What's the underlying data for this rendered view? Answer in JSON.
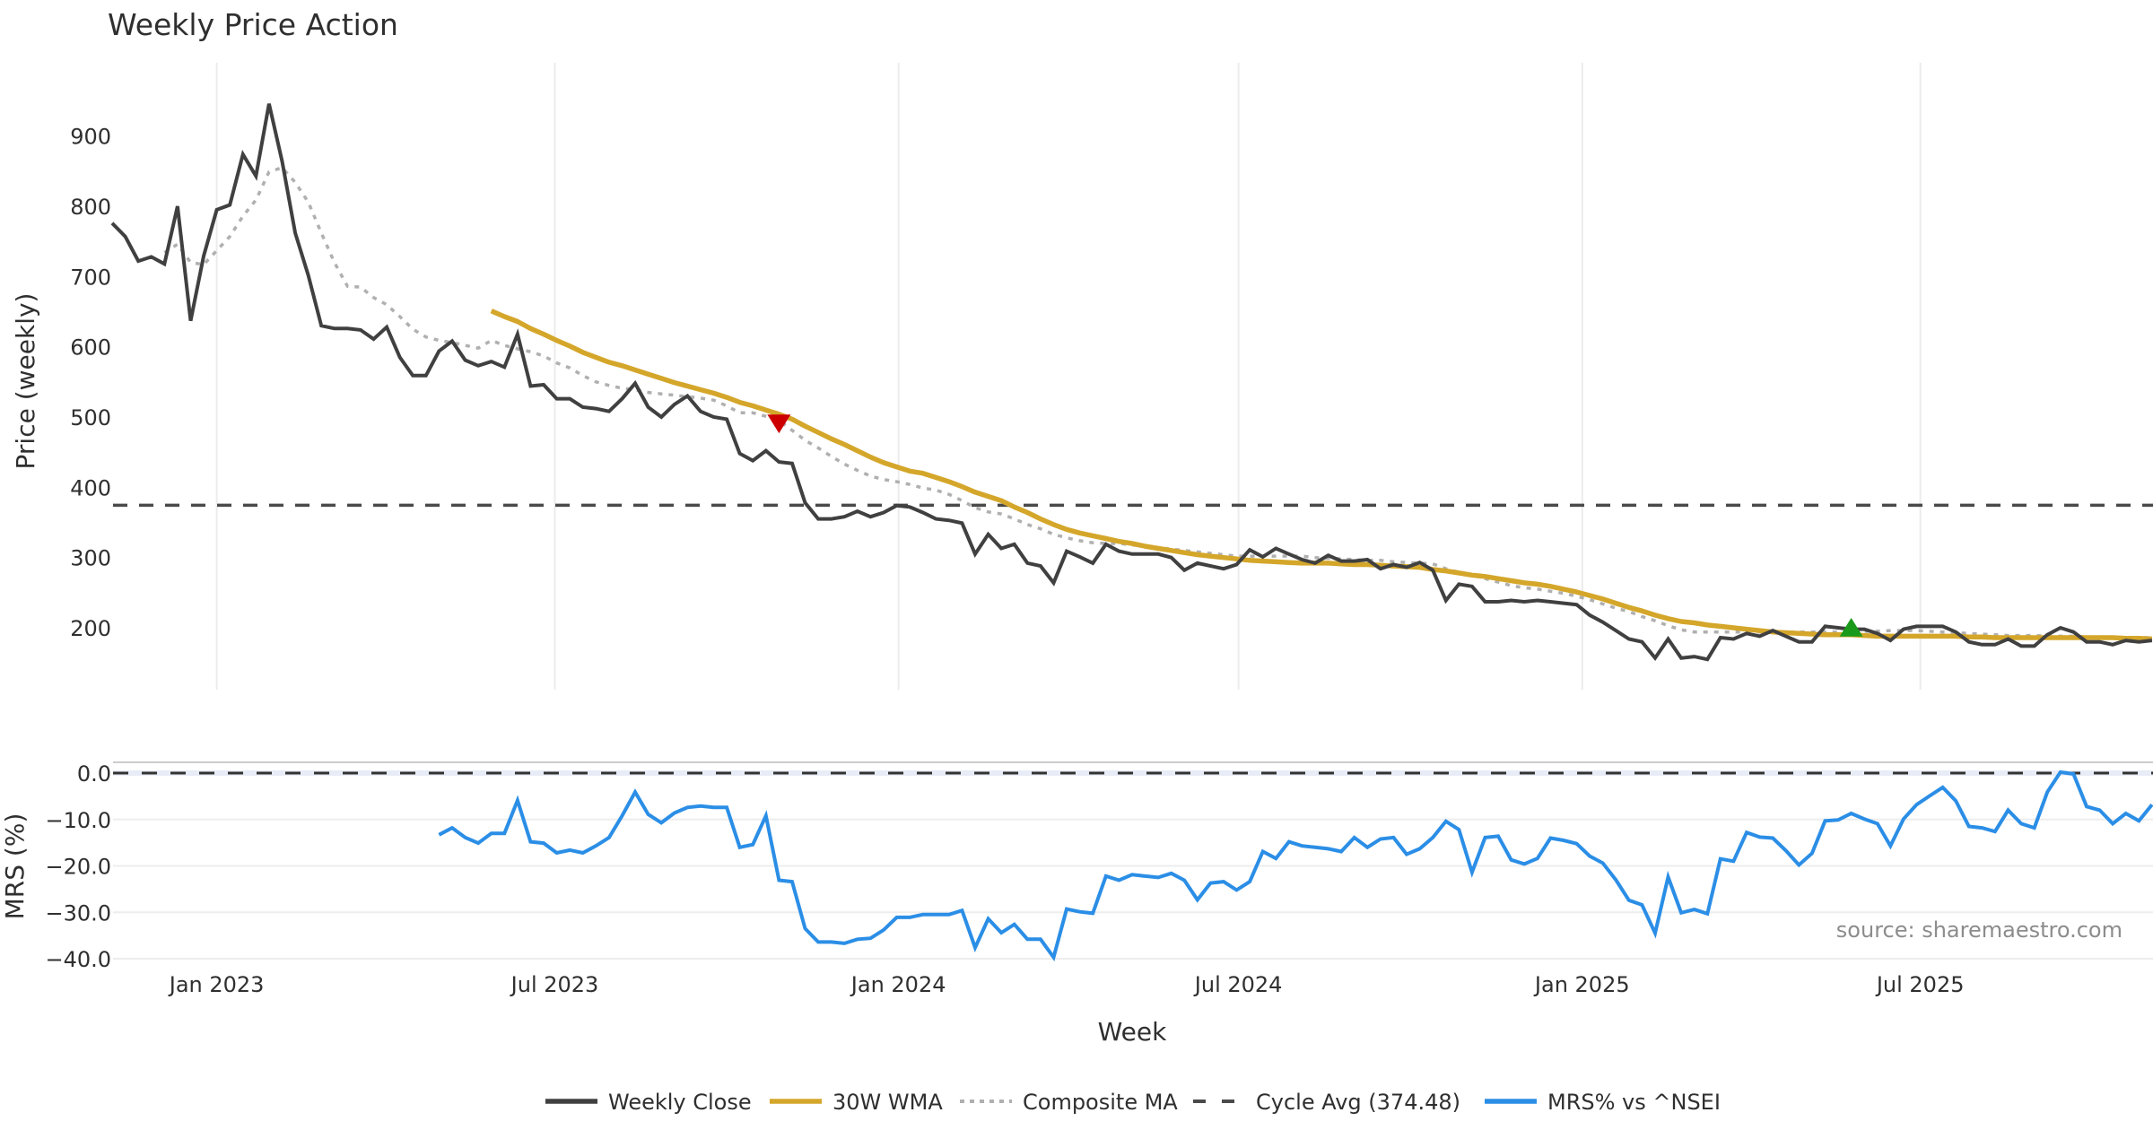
{
  "chart_data": {
    "type": "line",
    "title": "Weekly Price Action",
    "xlabel": "Week",
    "start_week": "2022-11-06",
    "week_count": 157,
    "x_ticks": [
      {
        "label": "Jan 2023",
        "date": "2023-01-01"
      },
      {
        "label": "Jul 2023",
        "date": "2023-07-01"
      },
      {
        "label": "Jan 2024",
        "date": "2024-01-01"
      },
      {
        "label": "Jul 2024",
        "date": "2024-07-01"
      },
      {
        "label": "Jan 2025",
        "date": "2025-01-01"
      },
      {
        "label": "Jul 2025",
        "date": "2025-07-01"
      }
    ],
    "price_panel": {
      "ylabel": "Price (weekly)",
      "ylim": [
        110,
        985
      ],
      "y_ticks": [
        {
          "label": "900",
          "value": 900
        },
        {
          "label": "800",
          "value": 800
        },
        {
          "label": "700",
          "value": 700
        },
        {
          "label": "600",
          "value": 600
        },
        {
          "label": "500",
          "value": 500
        },
        {
          "label": "400",
          "value": 400
        },
        {
          "label": "300",
          "value": 300
        },
        {
          "label": "200",
          "value": 200
        }
      ],
      "grid": "vertical",
      "series": [
        {
          "name": "Weekly Close",
          "color": "#404040",
          "style": "solid",
          "start_index": 0,
          "values": [
            776,
            757,
            722,
            728,
            718,
            800,
            637,
            729,
            795,
            802,
            874,
            843,
            946,
            864,
            762,
            702,
            630,
            626,
            626,
            624,
            611,
            628,
            585,
            559,
            559,
            594,
            608,
            581,
            573,
            579,
            571,
            618,
            544,
            546,
            526,
            526,
            514,
            512,
            508,
            526,
            548,
            514,
            500,
            518,
            530,
            508,
            500,
            497,
            448,
            438,
            452,
            436,
            434,
            378,
            355,
            355,
            358,
            366,
            358,
            364,
            374,
            372,
            364,
            355,
            353,
            349,
            305,
            333,
            313,
            319,
            292,
            288,
            264,
            309,
            301,
            292,
            319,
            309,
            305,
            305,
            305,
            300,
            282,
            292,
            288,
            284,
            290,
            311,
            301,
            313,
            305,
            297,
            292,
            303,
            295,
            295,
            297,
            284,
            290,
            286,
            293,
            282,
            239,
            262,
            259,
            237,
            237,
            239,
            237,
            239,
            237,
            235,
            233,
            218,
            208,
            196,
            184,
            180,
            157,
            184,
            157,
            159,
            155,
            186,
            184,
            192,
            188,
            196,
            188,
            180,
            180,
            202,
            200,
            198,
            198,
            192,
            182,
            198,
            202,
            202,
            202,
            194,
            180,
            176,
            176,
            184,
            174,
            174,
            190,
            200,
            194,
            180,
            180,
            176,
            182,
            180,
            182
          ]
        },
        {
          "name": "30W WMA",
          "color": "#d4a62a",
          "style": "solid",
          "start_index": 29,
          "values": [
            651,
            643,
            636,
            626,
            618,
            609,
            601,
            592,
            585,
            578,
            573,
            567,
            561,
            555,
            549,
            544,
            539,
            534,
            528,
            521,
            516,
            510,
            504,
            497,
            487,
            478,
            469,
            461,
            452,
            443,
            435,
            429,
            423,
            420,
            414,
            408,
            401,
            393,
            387,
            381,
            372,
            364,
            355,
            347,
            340,
            335,
            331,
            327,
            323,
            320,
            316,
            313,
            310,
            307,
            304,
            302,
            300,
            298,
            296,
            295,
            294,
            293,
            292,
            292,
            292,
            291,
            290,
            290,
            289,
            288,
            287,
            286,
            283,
            281,
            278,
            275,
            273,
            270,
            267,
            264,
            262,
            259,
            255,
            251,
            246,
            241,
            235,
            229,
            224,
            218,
            213,
            209,
            207,
            204,
            202,
            200,
            198,
            196,
            194,
            193,
            192,
            191,
            190,
            190,
            190,
            189,
            188,
            188,
            188,
            188,
            188,
            188,
            188,
            187,
            187,
            186,
            186,
            186,
            186,
            186,
            186,
            186,
            186,
            186,
            186,
            185,
            185,
            184
          ]
        },
        {
          "name": "Composite MA",
          "color": "#b0b0b0",
          "style": "dotted",
          "start_index": 4,
          "values": [
            734,
            746,
            720,
            717,
            737,
            757,
            786,
            809,
            849,
            855,
            834,
            806,
            762,
            720,
            686,
            685,
            670,
            660,
            643,
            625,
            614,
            609,
            606,
            602,
            598,
            609,
            602,
            597,
            593,
            587,
            577,
            570,
            559,
            550,
            545,
            541,
            539,
            535,
            533,
            531,
            529,
            527,
            524,
            516,
            506,
            506,
            501,
            495,
            481,
            467,
            456,
            444,
            433,
            424,
            416,
            411,
            408,
            404,
            399,
            396,
            390,
            381,
            371,
            365,
            362,
            355,
            347,
            341,
            333,
            328,
            324,
            321,
            320,
            320,
            318,
            316,
            314,
            312,
            310,
            308,
            306,
            304,
            302,
            302,
            302,
            302,
            302,
            302,
            300,
            299,
            298,
            297,
            296,
            296,
            294,
            293,
            292,
            291,
            284,
            279,
            275,
            270,
            265,
            260,
            257,
            255,
            252,
            249,
            245,
            240,
            234,
            228,
            223,
            216,
            210,
            203,
            197,
            194,
            194,
            194,
            194,
            194,
            194,
            194,
            194,
            194,
            194,
            194,
            194,
            194,
            195,
            195,
            196,
            196,
            196,
            195,
            194,
            193,
            192,
            191,
            190,
            189,
            189,
            189,
            188,
            188,
            188,
            187,
            187,
            187,
            186,
            186,
            186
          ]
        },
        {
          "name": "Cycle Avg (374.48)",
          "color": "#4a4a4a",
          "style": "dashed",
          "value": 374.48
        }
      ],
      "markers": [
        {
          "type": "sell",
          "shape": "triangle-down",
          "color": "#cc0000",
          "index": 51,
          "value": 491
        },
        {
          "type": "buy",
          "shape": "triangle-up",
          "color": "#1a9a1a",
          "index": 133,
          "value": 200
        }
      ]
    },
    "mrs_panel": {
      "ylabel": "MRS (%)",
      "ylim": [
        -41.5,
        1.5
      ],
      "y_ticks": [
        {
          "label": "0.0",
          "value": 0
        },
        {
          "label": "−10.0",
          "value": -10
        },
        {
          "label": "−20.0",
          "value": -20
        },
        {
          "label": "−30.0",
          "value": -30
        },
        {
          "label": "−40.0",
          "value": -40
        }
      ],
      "grid": "horizontal",
      "zero_line": {
        "value": 0,
        "style": "dashed",
        "color": "#333333"
      },
      "series": [
        {
          "name": "MRS% vs ^NSEI",
          "color": "#2b8ee6",
          "style": "solid",
          "start_index": 25,
          "values": [
            -13.3,
            -11.8,
            -13.9,
            -15.1,
            -13.0,
            -13.0,
            -5.9,
            -14.8,
            -15.1,
            -17.2,
            -16.6,
            -17.2,
            -15.7,
            -13.9,
            -9.2,
            -4.1,
            -8.9,
            -10.7,
            -8.6,
            -7.4,
            -7.1,
            -7.4,
            -7.4,
            -16.0,
            -15.4,
            -9.2,
            -23.1,
            -23.4,
            -33.5,
            -36.4,
            -36.4,
            -36.7,
            -35.8,
            -35.6,
            -33.8,
            -31.1,
            -31.1,
            -30.5,
            -30.5,
            -30.5,
            -29.6,
            -37.6,
            -31.4,
            -34.4,
            -32.6,
            -35.8,
            -35.8,
            -39.7,
            -29.3,
            -29.9,
            -30.2,
            -22.2,
            -23.1,
            -21.9,
            -22.2,
            -22.5,
            -21.6,
            -23.1,
            -27.3,
            -23.7,
            -23.4,
            -25.2,
            -23.4,
            -16.9,
            -18.4,
            -14.8,
            -15.7,
            -16.0,
            -16.3,
            -16.9,
            -13.9,
            -16.0,
            -14.2,
            -13.9,
            -17.5,
            -16.3,
            -13.9,
            -10.4,
            -12.2,
            -21.4,
            -13.9,
            -13.6,
            -18.7,
            -19.6,
            -18.4,
            -14.0,
            -14.5,
            -15.2,
            -17.9,
            -19.4,
            -23.0,
            -27.4,
            -28.4,
            -34.5,
            -22.4,
            -30.1,
            -29.4,
            -30.3,
            -18.5,
            -19.0,
            -12.8,
            -13.8,
            -14.0,
            -16.7,
            -19.8,
            -17.3,
            -10.3,
            -10.1,
            -8.7,
            -9.9,
            -10.9,
            -15.7,
            -9.9,
            -6.8,
            -4.9,
            -3.1,
            -6.0,
            -11.5,
            -11.8,
            -12.6,
            -8.0,
            -10.9,
            -11.8,
            -4.1,
            0.2,
            -0.2,
            -7.2,
            -8.0,
            -10.9,
            -8.7,
            -10.3,
            -6.8
          ]
        }
      ]
    },
    "legend": {
      "placement": "bottom-center",
      "entries": [
        {
          "label": "Weekly Close",
          "color": "#404040",
          "style": "solid"
        },
        {
          "label": "30W WMA",
          "color": "#d4a62a",
          "style": "solid"
        },
        {
          "label": "Composite MA",
          "color": "#b0b0b0",
          "style": "dotted"
        },
        {
          "label": "Cycle Avg (374.48)",
          "color": "#4a4a4a",
          "style": "dashed"
        },
        {
          "label": "MRS% vs ^NSEI",
          "color": "#2b8ee6",
          "style": "solid"
        }
      ]
    },
    "annotation": "source: sharemaestro.com"
  }
}
